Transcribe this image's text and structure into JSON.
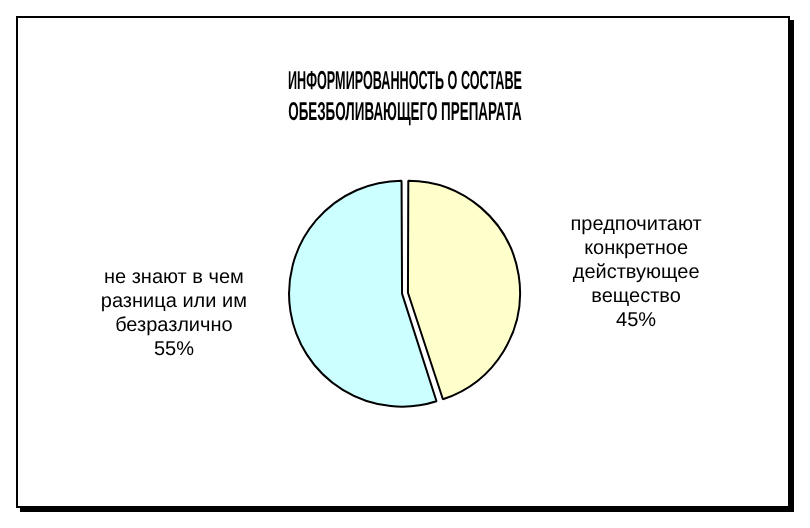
{
  "chart_data": {
    "type": "pie",
    "title": "ИНФОРМИРОВАННОСТЬ О СОСТАВЕ ОБЕЗБОЛИВАЮЩЕГО ПРЕПАРАТА",
    "categories": [
      "предпочитают конкретное действующее вещество",
      "не знают в чем разница или им безразлично"
    ],
    "values": [
      45,
      55
    ],
    "colors": [
      "#ffffcc",
      "#ccffff"
    ],
    "value_labels": [
      "45%",
      "55%"
    ],
    "legend": false
  }
}
